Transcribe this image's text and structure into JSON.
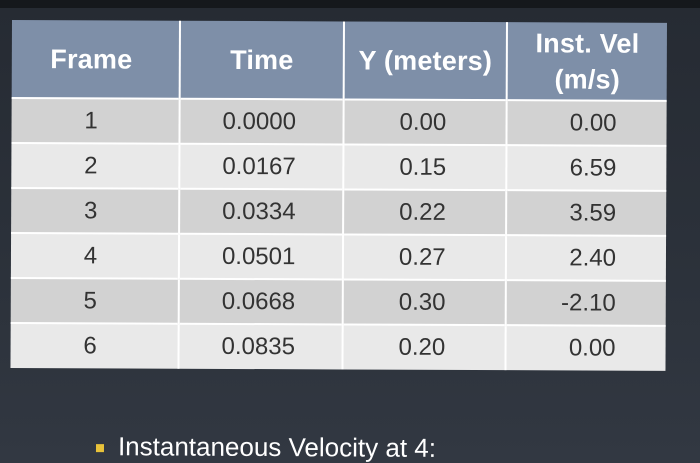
{
  "table": {
    "headers": [
      "Frame",
      "Time",
      "Y (meters)",
      "Inst. Vel\n(m/s)"
    ],
    "rows": [
      [
        "1",
        "0.0000",
        "0.00",
        "0.00"
      ],
      [
        "2",
        "0.0167",
        "0.15",
        "6.59"
      ],
      [
        "3",
        "0.0334",
        "0.22",
        "3.59"
      ],
      [
        "4",
        "0.0501",
        "0.27",
        "2.40"
      ],
      [
        "5",
        "0.0668",
        "0.30",
        "-2.10"
      ],
      [
        "6",
        "0.0835",
        "0.20",
        "0.00"
      ]
    ]
  },
  "bullet": {
    "text": "Instantaneous Velocity at 4:",
    "marker_color": "#e8c23a"
  },
  "colors": {
    "header_bg": "#7e8fa8",
    "row_dark": "#d2d2d2",
    "row_light": "#e9e9e9",
    "slide_bg": "#2c323b"
  }
}
